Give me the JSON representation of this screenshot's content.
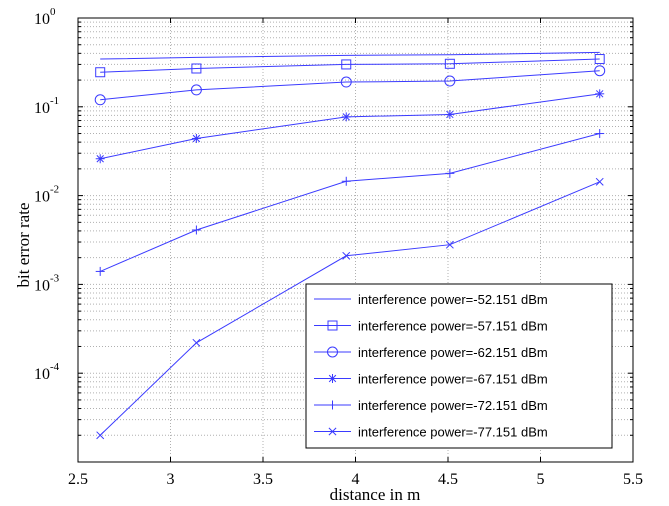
{
  "colors": {
    "series": "#3b3bff",
    "grid": "#b0b0b0",
    "axis": "#000000"
  },
  "chart_data": {
    "type": "line",
    "xlabel": "distance in m",
    "ylabel": "bit error rate",
    "xlim": [
      2.5,
      5.5
    ],
    "ylim": [
      1e-05,
      1
    ],
    "y_scale": "log",
    "grid": true,
    "legend_position": "bottom-right",
    "x_ticks": [
      "2.5",
      "3",
      "3.5",
      "4",
      "4.5",
      "5",
      "5.5"
    ],
    "y_ticks": [
      {
        "base": "10",
        "exp": "0"
      },
      {
        "base": "10",
        "exp": "-1"
      },
      {
        "base": "10",
        "exp": "-2"
      },
      {
        "base": "10",
        "exp": "-3"
      },
      {
        "base": "10",
        "exp": "-4"
      }
    ],
    "x": [
      2.62,
      3.14,
      3.95,
      4.51,
      5.32
    ],
    "series": [
      {
        "name": "interference power=-52.151 dBm",
        "marker": "none",
        "values": [
          0.345,
          0.36,
          0.38,
          0.385,
          0.41
        ]
      },
      {
        "name": "interference power=-57.151 dBm",
        "marker": "square",
        "values": [
          0.245,
          0.27,
          0.3,
          0.305,
          0.345
        ]
      },
      {
        "name": "interference power=-62.151 dBm",
        "marker": "circle",
        "values": [
          0.12,
          0.155,
          0.19,
          0.195,
          0.255
        ]
      },
      {
        "name": "interference power=-67.151 dBm",
        "marker": "star",
        "values": [
          0.026,
          0.044,
          0.077,
          0.082,
          0.14
        ]
      },
      {
        "name": "interference power=-72.151 dBm",
        "marker": "plus",
        "values": [
          0.0014,
          0.0041,
          0.0145,
          0.0178,
          0.05
        ]
      },
      {
        "name": "interference power=-77.151 dBm",
        "marker": "x",
        "values": [
          2e-05,
          0.00022,
          0.0021,
          0.0028,
          0.0143
        ]
      }
    ]
  }
}
